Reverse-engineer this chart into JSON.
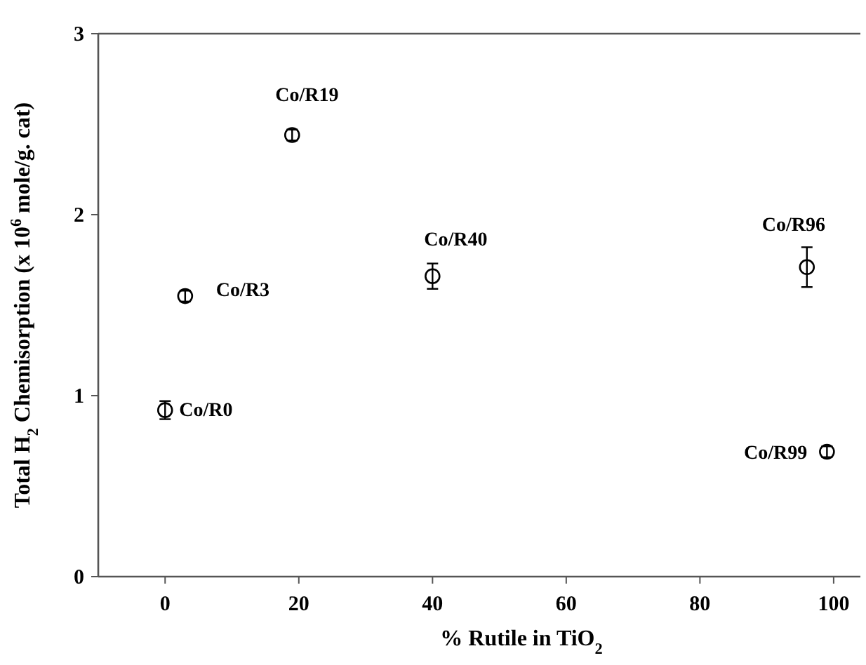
{
  "chart_data": {
    "type": "scatter",
    "xlabel": "% Rutile in TiO$_{2}$",
    "ylabel": "Total H$_{2}$ Chemisorption (x 10$^{6}$ mole/g. cat)",
    "xlim": [
      -10,
      104
    ],
    "ylim": [
      0,
      3
    ],
    "xticks": [
      0,
      20,
      40,
      60,
      80,
      100
    ],
    "yticks": [
      0,
      1,
      2,
      3
    ],
    "marker": "circle",
    "grid": false,
    "series": [
      {
        "color": "#000000",
        "x": [
          0,
          3,
          19,
          40,
          96,
          99
        ],
        "values": [
          0.92,
          1.55,
          2.44,
          1.66,
          1.71,
          0.69
        ],
        "errors": [
          0.05,
          0.03,
          0.03,
          0.07,
          0.11,
          0.03
        ]
      }
    ],
    "annotations": [
      {
        "text": "Co/R0",
        "x": 0,
        "y": 0.92
      },
      {
        "text": "Co/R3",
        "x": 3,
        "y": 1.55
      },
      {
        "text": "Co/R19",
        "x": 19,
        "y": 2.44
      },
      {
        "text": "Co/R40",
        "x": 40,
        "y": 1.66
      },
      {
        "text": "Co/R96",
        "x": 96,
        "y": 1.71
      },
      {
        "text": "Co/R99",
        "x": 99,
        "y": 0.69
      }
    ]
  }
}
